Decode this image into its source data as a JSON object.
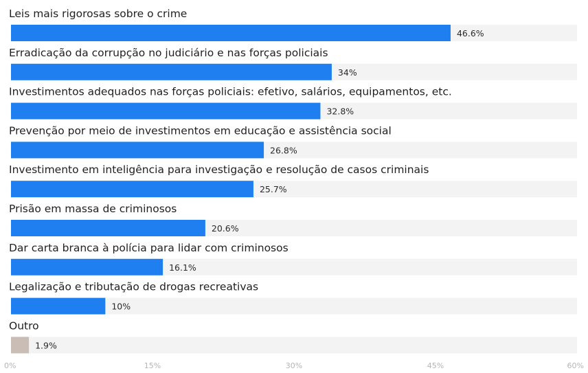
{
  "chart_data": {
    "type": "bar",
    "orientation": "horizontal",
    "categories": [
      "Leis mais rigorosas sobre o crime",
      "Erradicação da corrupção no judiciário e nas forças policiais",
      "Investimentos adequados nas forças policiais: efetivo, salários, equipamentos, etc.",
      "Prevenção por meio de investimentos em educação e assistência social",
      "Investimento em inteligência para investigação e resolução de casos criminais",
      "Prisão em massa de criminosos",
      "Dar carta branca à polícia para lidar com criminosos",
      "Legalização e tributação de drogas recreativas",
      "Outro"
    ],
    "values": [
      46.6,
      34,
      32.8,
      26.8,
      25.7,
      20.6,
      16.1,
      10,
      1.9
    ],
    "value_labels": [
      "46.6%",
      "34%",
      "32.8%",
      "26.8%",
      "25.7%",
      "20.6%",
      "16.1%",
      "10%",
      "1.9%"
    ],
    "bar_colors": [
      "#1f7ff0",
      "#1f7ff0",
      "#1f7ff0",
      "#1f7ff0",
      "#1f7ff0",
      "#1f7ff0",
      "#1f7ff0",
      "#1f7ff0",
      "#c9bdb6"
    ],
    "track_color": "#f3f3f3",
    "xlim": [
      0,
      60
    ],
    "xticks": [
      0,
      15,
      30,
      45,
      60
    ],
    "xtick_labels": [
      "0%",
      "15%",
      "30%",
      "45%",
      "60%"
    ],
    "grid": false,
    "title": "",
    "xlabel": "",
    "ylabel": ""
  }
}
